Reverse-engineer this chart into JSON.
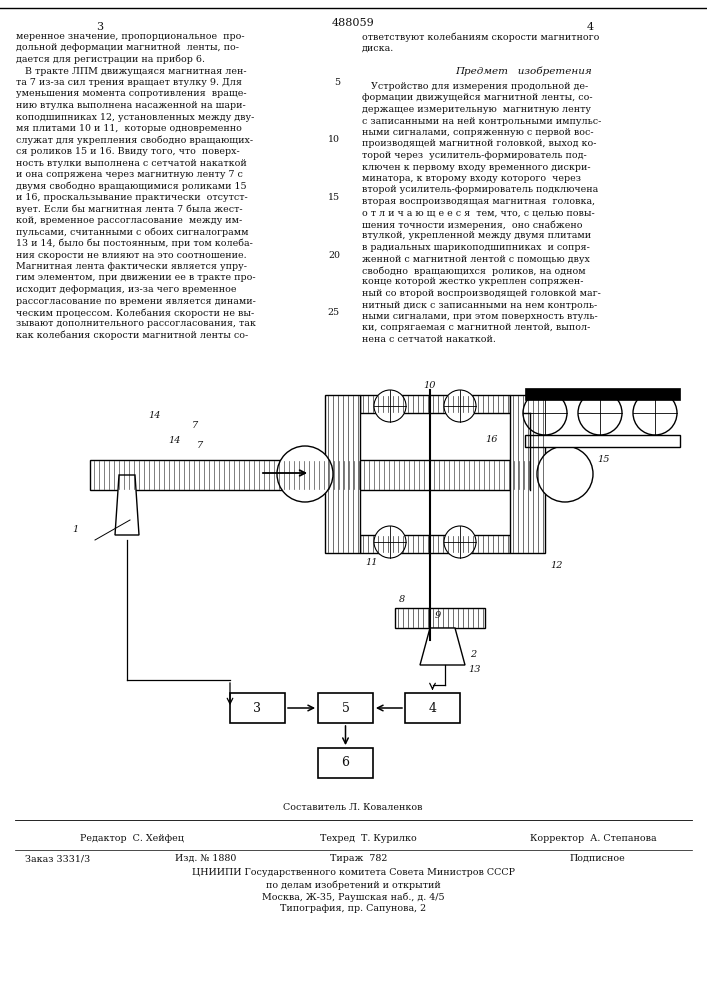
{
  "patent_number": "488059",
  "background_color": "#ffffff",
  "text_color": "#111111",
  "left_col_lines": [
    "меренное значение, пропорциональное  про-",
    "дольной деформации магнитной  ленты, по-",
    "дается для регистрации на прибор 6.",
    "   В тракте ЛПМ движущаяся магнитная лен-",
    "та 7 из-за сил трения вращает втулку 9. Для",
    "уменьшения момента сопротивления  враще-",
    "нию втулка выполнена насаженной на шари-",
    "коподшипниках 12, установленных между дву-",
    "мя плитами 10 и 11,  которые одновременно",
    "служат для укрепления свободно вращающих-",
    "ся роликов 15 и 16. Ввиду того, что  поверх-",
    "ность втулки выполнена с сетчатой накаткой",
    "и она сопряжена через магнитную ленту 7 с",
    "двумя свободно вращающимися роликами 15",
    "и 16, проскальзывание практически  отсутст-",
    "вует. Если бы магнитная лента 7 была жест-",
    "кой, временное рассогласование  между им-",
    "пульсами, считанными с обоих сигналограмм",
    "13 и 14, было бы постоянным, при том колеба-",
    "ния скорости не влияют на это соотношение.",
    "Магнитная лента фактически является упру-",
    "гим элементом, при движении ее в тракте про-",
    "исходит деформация, из-за чего временное",
    "рассогласование по времени является динами-",
    "ческим процессом. Колебания скорости не вы-",
    "зывают дополнительного рассогласования, так",
    "как колебания скорости магнитной ленты со-"
  ],
  "left_line_nums": [
    null,
    null,
    null,
    null,
    "5",
    null,
    null,
    null,
    null,
    "10",
    null,
    null,
    null,
    null,
    "15",
    null,
    null,
    null,
    null,
    "20",
    null,
    null,
    null,
    null,
    "25",
    null,
    null
  ],
  "right_col_top_lines": [
    "ответствуют колебаниям скорости магнитного",
    "диска."
  ],
  "claim_title": "Предмет   изобретения",
  "claim_lines": [
    "   Устройство для измерения продольной де-",
    "формации движущейся магнитной ленты, со-",
    "держащее измерительную  магнитную ленту",
    "с записанными на ней контрольными импульс-",
    "ными сигналами, сопряженную с первой вос-",
    "производящей магнитной головкой, выход ко-",
    "торой через  усилитель-формирователь под-",
    "ключен к первому входу временного дискри-",
    "минатора, к второму входу которого  через",
    "второй усилитель-формирователь подключена",
    "вторая воспроизводящая магнитная  головка,",
    "о т л и ч а ю щ е е с я  тем, что, с целью повы-",
    "шения точности измерения,  оно снабжено",
    "втулкой, укрепленной между двумя плитами",
    "в радиальных шарикоподшипниках  и сопря-",
    "женной с магнитной лентой с помощью двух",
    "свободно  вращающихся  роликов, на одном",
    "конце которой жестко укреплен сопряжен-",
    "ный со второй воспроизводящей головкой маг-",
    "нитный диск с записанными на нем контроль-",
    "ными сигналами, при этом поверхность втуль-",
    "ки, сопрягаемая с магнитной лентой, выпол-",
    "нена с сетчатой накаткой."
  ],
  "footer_composer": "Составитель Л. Коваленков",
  "footer_editor": "Редактор  С. Хейфец",
  "footer_techred": "Техред  Т. Курилко",
  "footer_corrector": "Корректор  А. Степанова",
  "footer_order": "Заказ 3331/3",
  "footer_izd": "Изд. № 1880",
  "footer_tirazh": "Тираж  782",
  "footer_podpisnoe": "Подписное",
  "footer_tsniip": "ЦНИИПИ Государственного комитета Совета Министров СССР",
  "footer_po": "по делам изобретений и открытий",
  "footer_moscow": "Москва, Ж-35, Раушская наб., д. 4/5",
  "footer_tipog": "Типография, пр. Сапунова, 2"
}
